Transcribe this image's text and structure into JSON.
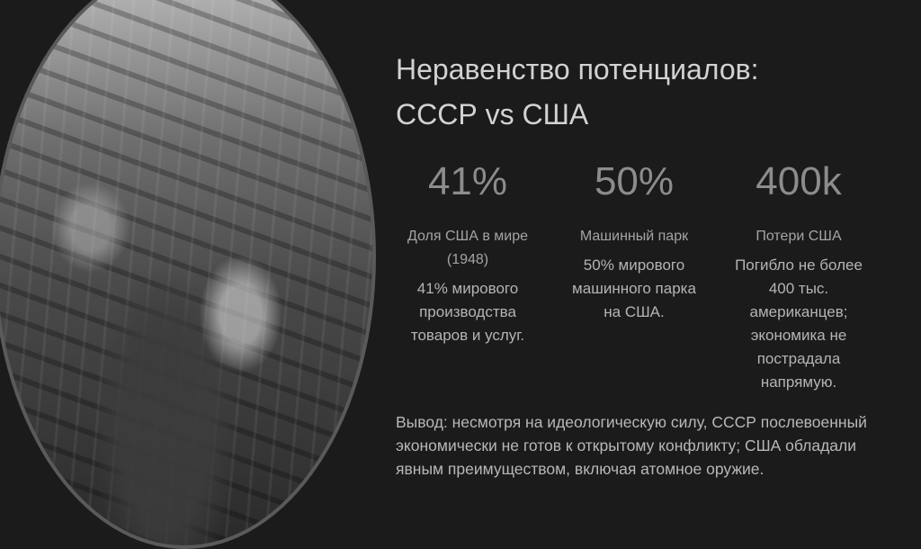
{
  "slide": {
    "title_line1": "Неравенство потенциалов:",
    "title_line2": "СССР vs США",
    "stats": [
      {
        "value": "41%",
        "label": "Доля США в мире (1948)",
        "text": "41% мирового производства товаров и услуг."
      },
      {
        "value": "50%",
        "label": "Машинный парк",
        "text": "50% мирового машинного парка на США."
      },
      {
        "value": "400k",
        "label": "Потери США",
        "text": "Погибло не более 400 тыс. американцев; экономика не пострадала напрямую."
      }
    ],
    "conclusion": "Вывод: несмотря на идеологическую силу, СССР послевоенный экономически не готов к открытому конфликту; США обладали явным преимуществом, включая атомное оружие."
  }
}
